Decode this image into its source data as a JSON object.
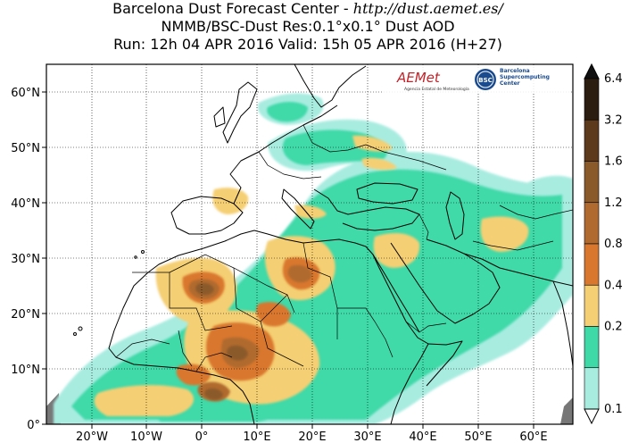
{
  "header": {
    "line1_prefix": "Barcelona Dust Forecast Center - ",
    "line1_url": "http://dust.aemet.es/",
    "line2": "NMMB/BSC-Dust    Res:0.1°x0.1°    Dust AOD",
    "line3": "Run: 12h 04 APR 2016    Valid: 15h 05 APR 2016 (H+27)"
  },
  "map": {
    "lat_labels": [
      "60°N",
      "50°N",
      "40°N",
      "30°N",
      "20°N",
      "10°N",
      "0°"
    ],
    "lon_labels": [
      "20°W",
      "10°W",
      "0°",
      "10°E",
      "20°E",
      "30°E",
      "40°E",
      "50°E",
      "60°E"
    ]
  },
  "colorbar": {
    "tick_labels": [
      "6.4",
      "3.2",
      "1.6",
      "1.2",
      "0.8",
      "0.4",
      "0.2",
      "0.1"
    ],
    "colors": [
      "#2b1d10",
      "#5e3a1c",
      "#8b5a2b",
      "#b06a2f",
      "#d9772f",
      "#f5cf73",
      "#3fd9a8",
      "#a8ece0"
    ]
  },
  "logos": {
    "aemet_name": "AEMet",
    "aemet_caption": "Agencia Estatal de Meteorología",
    "bsc_badge": "BSC",
    "bsc_name_1": "Barcelona",
    "bsc_name_2": "Supercomputing",
    "bsc_name_3": "Center"
  },
  "colors": {
    "land": "#ffffff",
    "sea": "#ffffff",
    "ocean_hatch": "#777777"
  }
}
